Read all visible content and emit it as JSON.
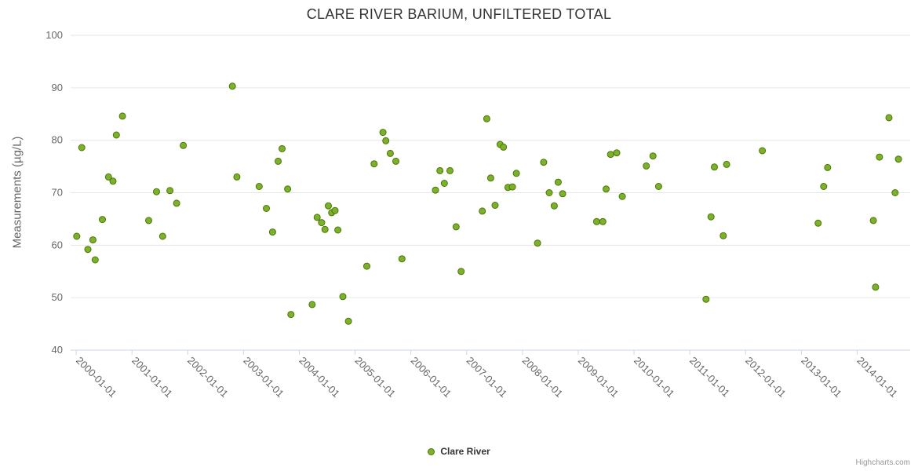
{
  "page": {
    "credits": "Highcharts.com"
  },
  "chart_data": {
    "type": "scatter",
    "title": "CLARE RIVER BARIUM, UNFILTERED TOTAL",
    "xlabel": "",
    "ylabel": "Measurements (µg/L)",
    "xlim": [
      1999.9,
      2014.95
    ],
    "ylim": [
      40,
      100
    ],
    "yticks": [
      40,
      50,
      60,
      70,
      80,
      90,
      100
    ],
    "xticks": [
      {
        "x": 2000,
        "label": "2000-01-01"
      },
      {
        "x": 2001,
        "label": "2001-01-01"
      },
      {
        "x": 2002,
        "label": "2002-01-01"
      },
      {
        "x": 2003,
        "label": "2003-01-01"
      },
      {
        "x": 2004,
        "label": "2004-01-01"
      },
      {
        "x": 2005,
        "label": "2005-01-01"
      },
      {
        "x": 2006,
        "label": "2006-01-01"
      },
      {
        "x": 2007,
        "label": "2007-01-01"
      },
      {
        "x": 2008,
        "label": "2008-01-01"
      },
      {
        "x": 2009,
        "label": "2009-01-01"
      },
      {
        "x": 2010,
        "label": "2010-01-01"
      },
      {
        "x": 2011,
        "label": "2011-01-01"
      },
      {
        "x": 2012,
        "label": "2012-01-01"
      },
      {
        "x": 2013,
        "label": "2013-01-01"
      },
      {
        "x": 2014,
        "label": "2014-01-01"
      }
    ],
    "grid": true,
    "legend_position": "bottom-center",
    "colors": {
      "marker_fill": "#7cb22a",
      "marker_stroke": "#4b7508",
      "grid": "#e6e6e6",
      "axis_line": "#ccd6eb",
      "tick_label": "#666666",
      "title": "#333333",
      "y_axis_title": "#666666",
      "legend_text": "#333333",
      "credits": "#999999"
    },
    "series": [
      {
        "name": "Clare River",
        "points": [
          [
            2000.01,
            61.7
          ],
          [
            2000.1,
            78.6
          ],
          [
            2000.21,
            59.2
          ],
          [
            2000.3,
            61.0
          ],
          [
            2000.34,
            57.2
          ],
          [
            2000.47,
            64.9
          ],
          [
            2000.58,
            73.0
          ],
          [
            2000.66,
            72.2
          ],
          [
            2000.72,
            81.0
          ],
          [
            2000.83,
            84.6
          ],
          [
            2001.3,
            64.7
          ],
          [
            2001.44,
            70.2
          ],
          [
            2001.55,
            61.7
          ],
          [
            2001.68,
            70.4
          ],
          [
            2001.8,
            68.0
          ],
          [
            2001.92,
            79.0
          ],
          [
            2002.8,
            90.3
          ],
          [
            2002.88,
            73.0
          ],
          [
            2003.28,
            71.2
          ],
          [
            2003.41,
            67.0
          ],
          [
            2003.52,
            62.5
          ],
          [
            2003.62,
            76.0
          ],
          [
            2003.69,
            78.4
          ],
          [
            2003.79,
            70.7
          ],
          [
            2003.85,
            46.8
          ],
          [
            2004.23,
            48.7
          ],
          [
            2004.32,
            65.3
          ],
          [
            2004.4,
            64.3
          ],
          [
            2004.46,
            63.0
          ],
          [
            2004.52,
            67.5
          ],
          [
            2004.58,
            66.2
          ],
          [
            2004.64,
            66.6
          ],
          [
            2004.69,
            62.9
          ],
          [
            2004.78,
            50.2
          ],
          [
            2004.88,
            45.5
          ],
          [
            2005.21,
            56.0
          ],
          [
            2005.34,
            75.5
          ],
          [
            2005.5,
            81.5
          ],
          [
            2005.55,
            79.9
          ],
          [
            2005.63,
            77.5
          ],
          [
            2005.73,
            76.0
          ],
          [
            2005.84,
            57.4
          ],
          [
            2006.44,
            70.5
          ],
          [
            2006.52,
            74.2
          ],
          [
            2006.6,
            71.8
          ],
          [
            2006.7,
            74.2
          ],
          [
            2006.81,
            63.5
          ],
          [
            2006.9,
            55.0
          ],
          [
            2007.28,
            66.5
          ],
          [
            2007.36,
            84.1
          ],
          [
            2007.43,
            72.8
          ],
          [
            2007.51,
            67.6
          ],
          [
            2007.6,
            79.2
          ],
          [
            2007.66,
            78.7
          ],
          [
            2007.74,
            71.0
          ],
          [
            2007.82,
            71.1
          ],
          [
            2007.89,
            73.7
          ],
          [
            2008.27,
            60.4
          ],
          [
            2008.38,
            75.8
          ],
          [
            2008.48,
            70.0
          ],
          [
            2008.57,
            67.5
          ],
          [
            2008.64,
            72.0
          ],
          [
            2008.72,
            69.8
          ],
          [
            2009.33,
            64.5
          ],
          [
            2009.44,
            64.5
          ],
          [
            2009.5,
            70.7
          ],
          [
            2009.58,
            77.3
          ],
          [
            2009.69,
            77.6
          ],
          [
            2009.79,
            69.3
          ],
          [
            2010.22,
            75.1
          ],
          [
            2010.34,
            77.0
          ],
          [
            2010.44,
            71.2
          ],
          [
            2011.29,
            49.7
          ],
          [
            2011.38,
            65.4
          ],
          [
            2011.44,
            74.9
          ],
          [
            2011.6,
            61.8
          ],
          [
            2011.66,
            75.4
          ],
          [
            2012.3,
            78.0
          ],
          [
            2013.3,
            64.2
          ],
          [
            2013.4,
            71.2
          ],
          [
            2013.47,
            74.8
          ],
          [
            2014.29,
            64.7
          ],
          [
            2014.33,
            52.0
          ],
          [
            2014.4,
            76.8
          ],
          [
            2014.57,
            84.3
          ],
          [
            2014.68,
            70.0
          ],
          [
            2014.74,
            76.4
          ]
        ]
      }
    ]
  }
}
